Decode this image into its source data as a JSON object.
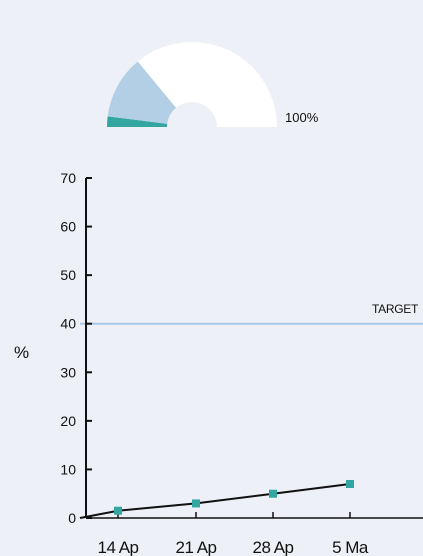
{
  "gauge": {
    "value_label": "100%",
    "segments": [
      {
        "name": "teal",
        "fraction": 0.04,
        "color": "#33a6a1"
      },
      {
        "name": "light-blue",
        "fraction": 0.24,
        "color": "#b3cfe6"
      },
      {
        "name": "remaining",
        "fraction": 0.72,
        "color": "#ffffff"
      }
    ]
  },
  "chart_data": {
    "type": "line",
    "categories": [
      "14 Ap",
      "21 Ap",
      "28 Ap",
      "5 Ma"
    ],
    "values": [
      1.5,
      3,
      5,
      7
    ],
    "ylabel": "%",
    "xlabel": "",
    "ylim": [
      0,
      70
    ],
    "yticks": [
      0,
      10,
      20,
      30,
      40,
      50,
      60,
      70
    ],
    "target": {
      "value": 40,
      "label": "TARGET"
    },
    "colors": {
      "line": "#111111",
      "marker": "#33a6a1",
      "target": "#a9c8e6"
    },
    "grid": false
  }
}
